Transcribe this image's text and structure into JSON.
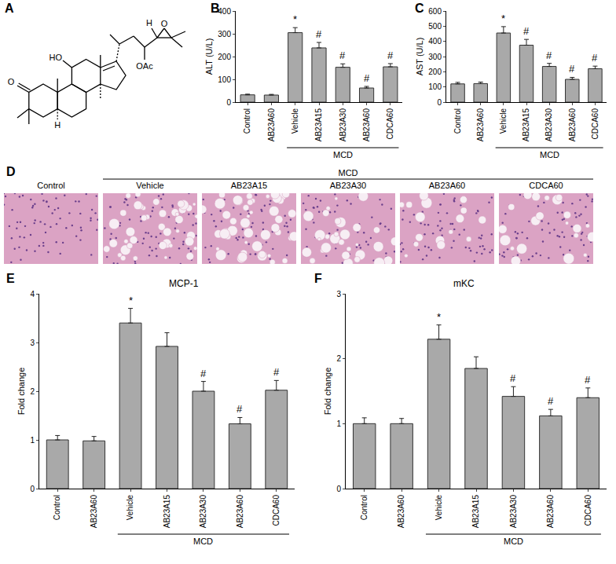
{
  "panel_a": {
    "label": "A",
    "atoms": [
      "HO",
      "O",
      "H",
      "H",
      "O",
      "OAc"
    ]
  },
  "chart_data": [
    {
      "panel": "B",
      "type": "bar",
      "ylabel": "ALT (U/L)",
      "categories": [
        "Control",
        "AB23A60",
        "Vehicle",
        "AB23A15",
        "AB23A30",
        "AB23A60",
        "CDCA60"
      ],
      "values": [
        32,
        31,
        305,
        238,
        153,
        62,
        155
      ],
      "errors": [
        3,
        3,
        22,
        24,
        15,
        7,
        14
      ],
      "annotations": [
        null,
        null,
        "*",
        "#",
        "#",
        "#",
        "#"
      ],
      "color": "#a9a9a9",
      "ylim": [
        0,
        400
      ],
      "yticks": [
        0,
        100,
        200,
        300,
        400
      ],
      "grid": false,
      "group": {
        "label": "MCD",
        "start": 2,
        "end": 6
      }
    },
    {
      "panel": "C",
      "type": "bar",
      "ylabel": "AST (U/L)",
      "categories": [
        "Control",
        "AB23A60",
        "Vehicle",
        "AB23A15",
        "AB23A30",
        "AB23A60",
        "CDCA60"
      ],
      "values": [
        120,
        122,
        455,
        375,
        235,
        150,
        220
      ],
      "errors": [
        10,
        10,
        42,
        38,
        20,
        13,
        17
      ],
      "annotations": [
        null,
        null,
        "*",
        "#",
        "#",
        "#",
        "#"
      ],
      "color": "#a9a9a9",
      "ylim": [
        0,
        600
      ],
      "yticks": [
        0,
        100,
        200,
        300,
        400,
        500,
        600
      ],
      "grid": false,
      "group": {
        "label": "MCD",
        "start": 2,
        "end": 6
      }
    },
    {
      "panel": "E",
      "type": "bar",
      "title": "MCP-1",
      "ylabel": "Fold change",
      "categories": [
        "Control",
        "AB23A60",
        "Vehicle",
        "AB23A15",
        "AB23A30",
        "AB23A60",
        "CDCA60"
      ],
      "values": [
        1.0,
        0.98,
        3.4,
        2.92,
        2.0,
        1.33,
        2.02
      ],
      "errors": [
        0.09,
        0.09,
        0.3,
        0.28,
        0.2,
        0.13,
        0.2
      ],
      "annotations": [
        null,
        null,
        "*",
        null,
        "#",
        "#",
        "#"
      ],
      "color": "#a9a9a9",
      "ylim": [
        0,
        4
      ],
      "yticks": [
        0,
        1,
        2,
        3,
        4
      ],
      "grid": false,
      "group": {
        "label": "MCD",
        "start": 2,
        "end": 6
      }
    },
    {
      "panel": "F",
      "type": "bar",
      "title": "mKC",
      "ylabel": "Fold change",
      "categories": [
        "Control",
        "AB23A60",
        "Vehicle",
        "AB23A15",
        "AB23A30",
        "AB23A60",
        "CDCA60"
      ],
      "values": [
        1.0,
        1.0,
        2.3,
        1.85,
        1.42,
        1.12,
        1.4
      ],
      "errors": [
        0.09,
        0.08,
        0.22,
        0.18,
        0.15,
        0.1,
        0.15
      ],
      "annotations": [
        null,
        null,
        "*",
        null,
        "#",
        "#",
        "#"
      ],
      "color": "#a9a9a9",
      "ylim": [
        0,
        3
      ],
      "yticks": [
        0,
        1,
        2,
        3
      ],
      "grid": false,
      "group": {
        "label": "MCD",
        "start": 2,
        "end": 6
      }
    }
  ],
  "panel_d": {
    "label": "D",
    "images": [
      "Control",
      "Vehicle",
      "AB23A15",
      "AB23A30",
      "AB23A60",
      "CDCA60"
    ],
    "group": {
      "label": "MCD",
      "start": 1,
      "end": 5
    }
  }
}
